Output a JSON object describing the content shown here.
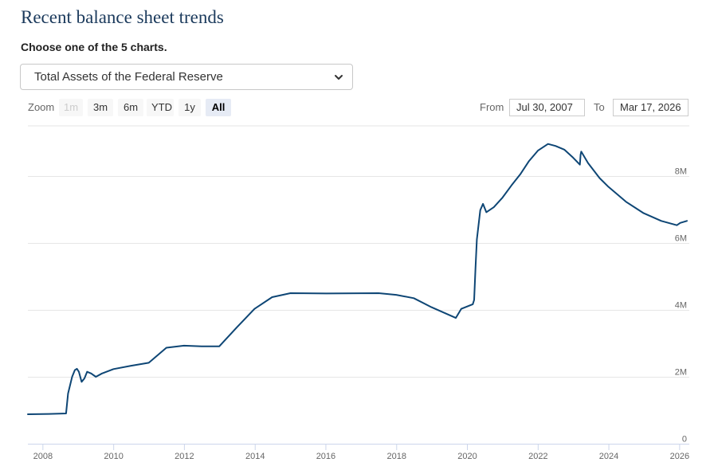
{
  "page": {
    "title": "Recent balance sheet trends",
    "chooser_label": "Choose one of the 5 charts.",
    "selected_chart": "Total Assets of the Federal Reserve"
  },
  "range_selector": {
    "zoom_label": "Zoom",
    "buttons": [
      "1m",
      "3m",
      "6m",
      "YTD",
      "1y",
      "All"
    ],
    "active": "All",
    "disabled": [
      "1m"
    ],
    "from_label": "From",
    "from_value": "Jul 30, 2007",
    "to_label": "To",
    "to_value": "Mar 17, 2026"
  },
  "chart_data": {
    "type": "line",
    "x_range": [
      "2007-07-30",
      "2026-03-17"
    ],
    "x_ticks": [
      "2008",
      "2010",
      "2012",
      "2014",
      "2016",
      "2018",
      "2020",
      "2022",
      "2024",
      "2026"
    ],
    "y_ticks": [
      0,
      2000000,
      4000000,
      6000000,
      8000000
    ],
    "y_tick_labels": [
      "0",
      "2M",
      "4M",
      "6M",
      "8M"
    ],
    "y_range": [
      0,
      9500000
    ],
    "y_axis_side": "right",
    "grid": "horizontal",
    "line_color": "#0e4675",
    "series": [
      {
        "points": [
          [
            "2007-07-30",
            880000
          ],
          [
            "2008-03-01",
            890000
          ],
          [
            "2008-08-27",
            905000
          ],
          [
            "2008-09-17",
            1500000
          ],
          [
            "2008-10-29",
            2000000
          ],
          [
            "2008-11-26",
            2200000
          ],
          [
            "2008-12-17",
            2240000
          ],
          [
            "2009-01-07",
            2150000
          ],
          [
            "2009-02-04",
            1850000
          ],
          [
            "2009-03-04",
            1950000
          ],
          [
            "2009-04-01",
            2150000
          ],
          [
            "2009-05-13",
            2100000
          ],
          [
            "2009-07-01",
            2000000
          ],
          [
            "2009-09-02",
            2100000
          ],
          [
            "2009-12-30",
            2230000
          ],
          [
            "2010-06-30",
            2330000
          ],
          [
            "2010-12-29",
            2420000
          ],
          [
            "2011-06-29",
            2870000
          ],
          [
            "2011-12-28",
            2930000
          ],
          [
            "2012-06-27",
            2910000
          ],
          [
            "2012-12-26",
            2910000
          ],
          [
            "2013-06-26",
            3480000
          ],
          [
            "2013-12-25",
            4030000
          ],
          [
            "2014-06-25",
            4380000
          ],
          [
            "2014-12-31",
            4500000
          ],
          [
            "2016-01-06",
            4490000
          ],
          [
            "2017-06-28",
            4500000
          ],
          [
            "2017-12-27",
            4450000
          ],
          [
            "2018-06-27",
            4350000
          ],
          [
            "2018-12-26",
            4080000
          ],
          [
            "2019-06-26",
            3850000
          ],
          [
            "2019-09-04",
            3760000
          ],
          [
            "2019-10-30",
            4030000
          ],
          [
            "2020-02-26",
            4170000
          ],
          [
            "2020-03-11",
            4300000
          ],
          [
            "2020-03-25",
            5250000
          ],
          [
            "2020-04-08",
            6100000
          ],
          [
            "2020-05-13",
            6980000
          ],
          [
            "2020-06-10",
            7170000
          ],
          [
            "2020-07-15",
            6920000
          ],
          [
            "2020-09-30",
            7070000
          ],
          [
            "2020-12-30",
            7360000
          ],
          [
            "2021-03-31",
            7720000
          ],
          [
            "2021-06-30",
            8050000
          ],
          [
            "2021-09-29",
            8450000
          ],
          [
            "2021-12-29",
            8760000
          ],
          [
            "2022-04-13",
            8960000
          ],
          [
            "2022-06-29",
            8900000
          ],
          [
            "2022-09-28",
            8790000
          ],
          [
            "2022-12-28",
            8550000
          ],
          [
            "2023-03-08",
            8340000
          ],
          [
            "2023-03-15",
            8640000
          ],
          [
            "2023-03-22",
            8730000
          ],
          [
            "2023-05-31",
            8390000
          ],
          [
            "2023-09-27",
            7940000
          ],
          [
            "2023-12-27",
            7680000
          ],
          [
            "2024-06-26",
            7230000
          ],
          [
            "2024-12-25",
            6890000
          ],
          [
            "2025-06-25",
            6660000
          ],
          [
            "2025-12-03",
            6530000
          ],
          [
            "2026-01-07",
            6600000
          ],
          [
            "2026-03-17",
            6660000
          ]
        ]
      }
    ]
  }
}
